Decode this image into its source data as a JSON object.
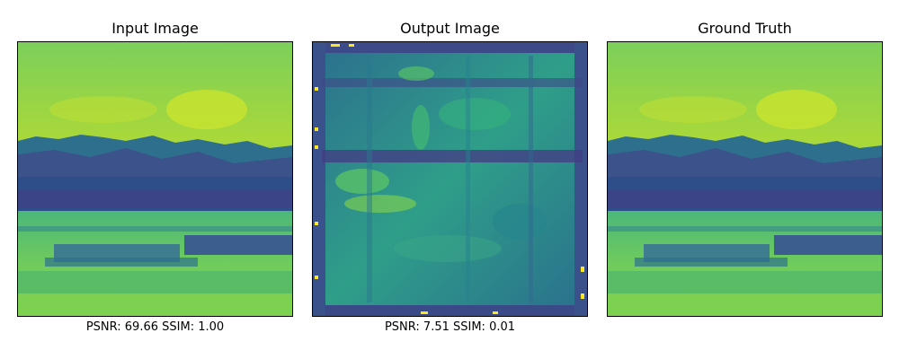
{
  "panels": [
    {
      "title": "Input Image",
      "caption": "PSNR: 69.66 SSIM: 1.00"
    },
    {
      "title": "Output Image",
      "caption": "PSNR: 7.51 SSIM: 0.01"
    },
    {
      "title": "Ground Truth",
      "caption": ""
    }
  ],
  "colormap": "viridis"
}
